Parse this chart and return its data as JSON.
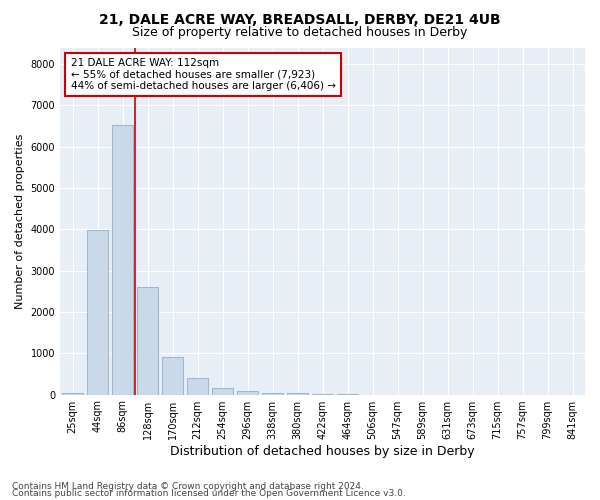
{
  "title": "21, DALE ACRE WAY, BREADSALL, DERBY, DE21 4UB",
  "subtitle": "Size of property relative to detached houses in Derby",
  "xlabel": "Distribution of detached houses by size in Derby",
  "ylabel": "Number of detached properties",
  "bar_labels": [
    "25sqm",
    "44sqm",
    "86sqm",
    "128sqm",
    "170sqm",
    "212sqm",
    "254sqm",
    "296sqm",
    "338sqm",
    "380sqm",
    "422sqm",
    "464sqm",
    "506sqm",
    "547sqm",
    "589sqm",
    "631sqm",
    "673sqm",
    "715sqm",
    "757sqm",
    "799sqm",
    "841sqm"
  ],
  "bar_values": [
    50,
    3980,
    6520,
    2600,
    920,
    390,
    155,
    80,
    50,
    50,
    10,
    5,
    2,
    1,
    0,
    0,
    0,
    0,
    0,
    0,
    0
  ],
  "bar_color": "#c9d9ea",
  "bar_edgecolor": "#a0b8d0",
  "bar_linewidth": 0.8,
  "vline_color": "#cc0000",
  "vline_linewidth": 1.2,
  "ylim": [
    0,
    8400
  ],
  "yticks": [
    0,
    1000,
    2000,
    3000,
    4000,
    5000,
    6000,
    7000,
    8000
  ],
  "annotation_text": "21 DALE ACRE WAY: 112sqm\n← 55% of detached houses are smaller (7,923)\n44% of semi-detached houses are larger (6,406) →",
  "annotation_box_color": "#ffffff",
  "annotation_box_edgecolor": "#cc0000",
  "background_color": "#e8eef5",
  "fig_background_color": "#ffffff",
  "footer1": "Contains HM Land Registry data © Crown copyright and database right 2024.",
  "footer2": "Contains public sector information licensed under the Open Government Licence v3.0.",
  "title_fontsize": 10,
  "subtitle_fontsize": 9,
  "xlabel_fontsize": 9,
  "ylabel_fontsize": 8,
  "tick_fontsize": 7,
  "annotation_fontsize": 7.5,
  "footer_fontsize": 6.5
}
